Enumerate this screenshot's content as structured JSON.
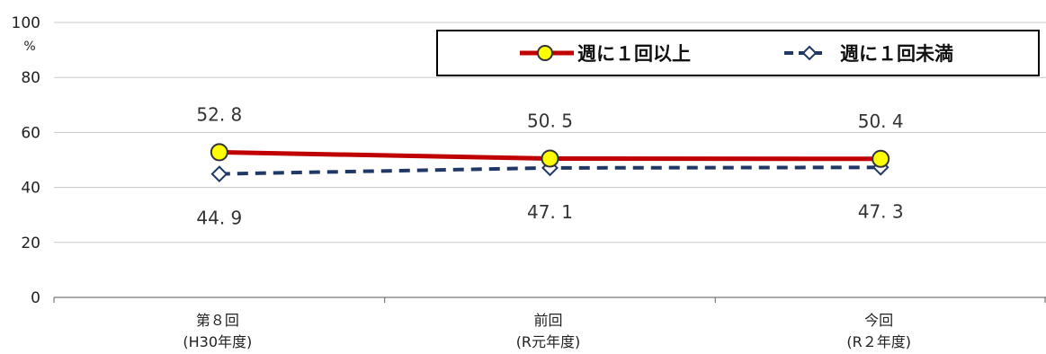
{
  "chart_data": {
    "type": "line",
    "ylim": [
      0,
      100
    ],
    "yticks": [
      0,
      20,
      40,
      60,
      80,
      100
    ],
    "y_unit": "%",
    "grid": true,
    "legend_position": "top-right",
    "categories": [
      {
        "line1": "第８回",
        "line2": "(H30年度)"
      },
      {
        "line1": "前回",
        "line2": "(R元年度)"
      },
      {
        "line1": "今回",
        "line2": "(R２年度)"
      }
    ],
    "series": [
      {
        "name": "週に１回以上",
        "values": [
          52.8,
          50.5,
          50.4
        ],
        "labels": [
          "52. 8",
          "50. 5",
          "50. 4"
        ],
        "color": "#c00000",
        "marker_fill": "#ffff00",
        "marker": "circle",
        "line_style": "solid"
      },
      {
        "name": "週に１回未満",
        "values": [
          44.9,
          47.1,
          47.3
        ],
        "labels": [
          "44. 9",
          "47. 1",
          "47. 3"
        ],
        "color": "#1f3864",
        "marker_fill": "#ffffff",
        "marker": "diamond",
        "line_style": "dashed"
      }
    ]
  }
}
